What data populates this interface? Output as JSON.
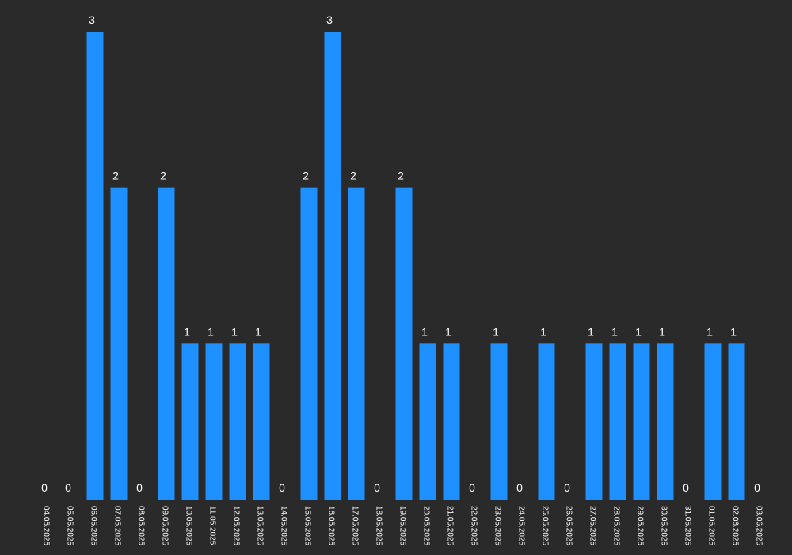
{
  "colors": {
    "background": "#2a2a2a",
    "bar": "#1e90ff",
    "axis": "#ffffff",
    "text": "#ffffff"
  },
  "chart_data": {
    "type": "bar",
    "title": "",
    "xlabel": "",
    "ylabel": "",
    "ylim": [
      0,
      3
    ],
    "grid": false,
    "legend": "none",
    "categories": [
      "04.05.2025",
      "05.05.2025",
      "06.05.2025",
      "07.05.2025",
      "08.05.2025",
      "09.05.2025",
      "10.05.2025",
      "11.05.2025",
      "12.05.2025",
      "13.05.2025",
      "14.05.2025",
      "15.05.2025",
      "16.05.2025",
      "17.05.2025",
      "18.05.2025",
      "19.05.2025",
      "20.05.2025",
      "21.05.2025",
      "22.05.2025",
      "23.05.2025",
      "24.05.2025",
      "25.05.2025",
      "26.05.2025",
      "27.05.2025",
      "28.05.2025",
      "29.05.2025",
      "30.05.2025",
      "31.05.2025",
      "01.06.2025",
      "02.06.2025",
      "03.06.2025"
    ],
    "values": [
      0,
      0,
      3,
      2,
      0,
      2,
      1,
      1,
      1,
      1,
      0,
      2,
      3,
      2,
      0,
      2,
      1,
      1,
      0,
      1,
      0,
      1,
      0,
      1,
      1,
      1,
      1,
      0,
      1,
      1,
      0
    ]
  }
}
